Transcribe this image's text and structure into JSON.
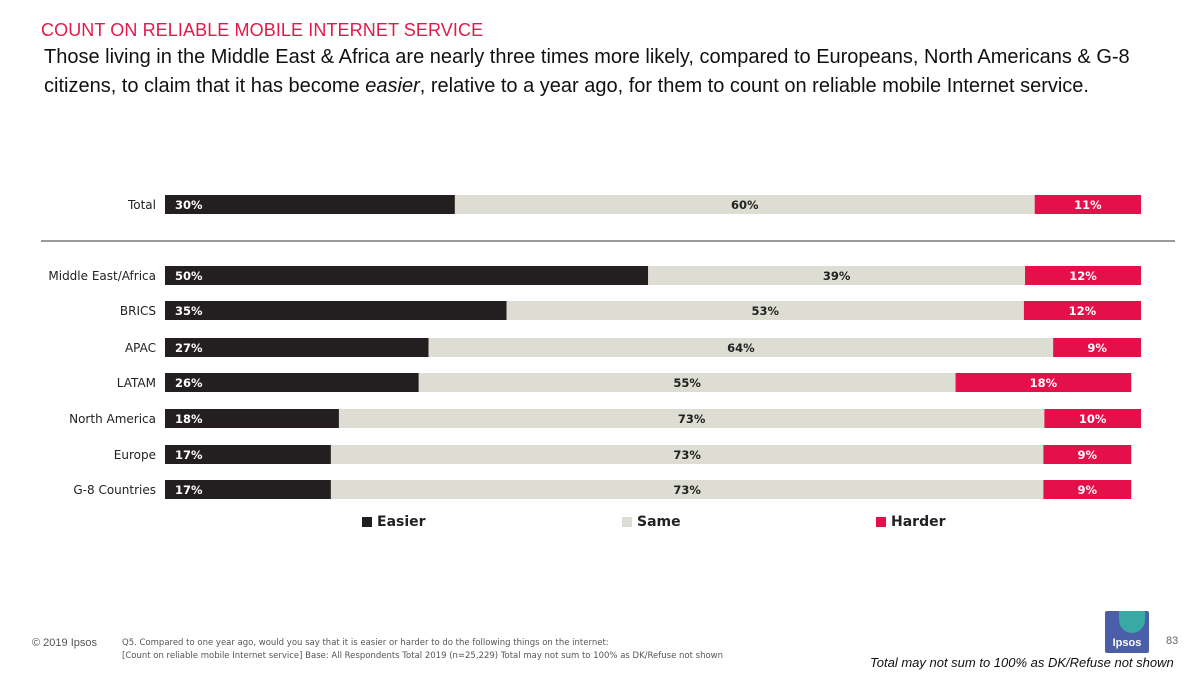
{
  "header": {
    "section_title": "COUNT ON RELIABLE MOBILE INTERNET SERVICE",
    "headline_before": "Those living in the Middle East & Africa are nearly three times more likely, compared to Europeans, North Americans & G-8 citizens, to claim that it has become ",
    "headline_emphasis": "easier",
    "headline_after": ", relative to a year ago, for them to count on reliable mobile Internet service."
  },
  "chart_data": {
    "type": "bar",
    "orientation": "horizontal",
    "stacked": true,
    "categories": [
      "Total",
      "Middle East/Africa",
      "BRICS",
      "APAC",
      "LATAM",
      "North America",
      "Europe",
      "G-8 Countries"
    ],
    "series": [
      {
        "name": "Easier",
        "color": "#231f20",
        "values": [
          30,
          50,
          35,
          27,
          26,
          18,
          17,
          17
        ],
        "labels": [
          "30%",
          "50%",
          "35%",
          "27%",
          "26%",
          "18%",
          "17%",
          "17%"
        ]
      },
      {
        "name": "Same",
        "color": "#ddddd3",
        "values": [
          60,
          39,
          53,
          64,
          55,
          73,
          73,
          73
        ],
        "labels": [
          "60%",
          "39%",
          "53%",
          "64%",
          "55%",
          "73%",
          "73%",
          "73%"
        ]
      },
      {
        "name": "Harder",
        "color": "#e5104a",
        "values": [
          11,
          12,
          12,
          9,
          18,
          10,
          9,
          9
        ],
        "labels": [
          "11%",
          "12%",
          "12%",
          "9%",
          "18%",
          "10%",
          "9%",
          "9%"
        ]
      }
    ],
    "xlim": [
      0,
      100
    ],
    "grid": false,
    "legend": "bottom",
    "separator_after": "Total"
  },
  "footer": {
    "copyright": "© 2019 Ipsos",
    "footnote_line1": "Q5. Compared to one year ago, would you say that it is easier or harder to do the following things on the internet:",
    "footnote_line2": "[Count on reliable mobile Internet service] Base: All Respondents Total  2019 (n=25,229) Total may not sum to 100% as DK/Refuse not shown",
    "page_number": "83",
    "logo_text": "Ipsos",
    "note": "Total may not sum to 100% as DK/Refuse not shown"
  }
}
